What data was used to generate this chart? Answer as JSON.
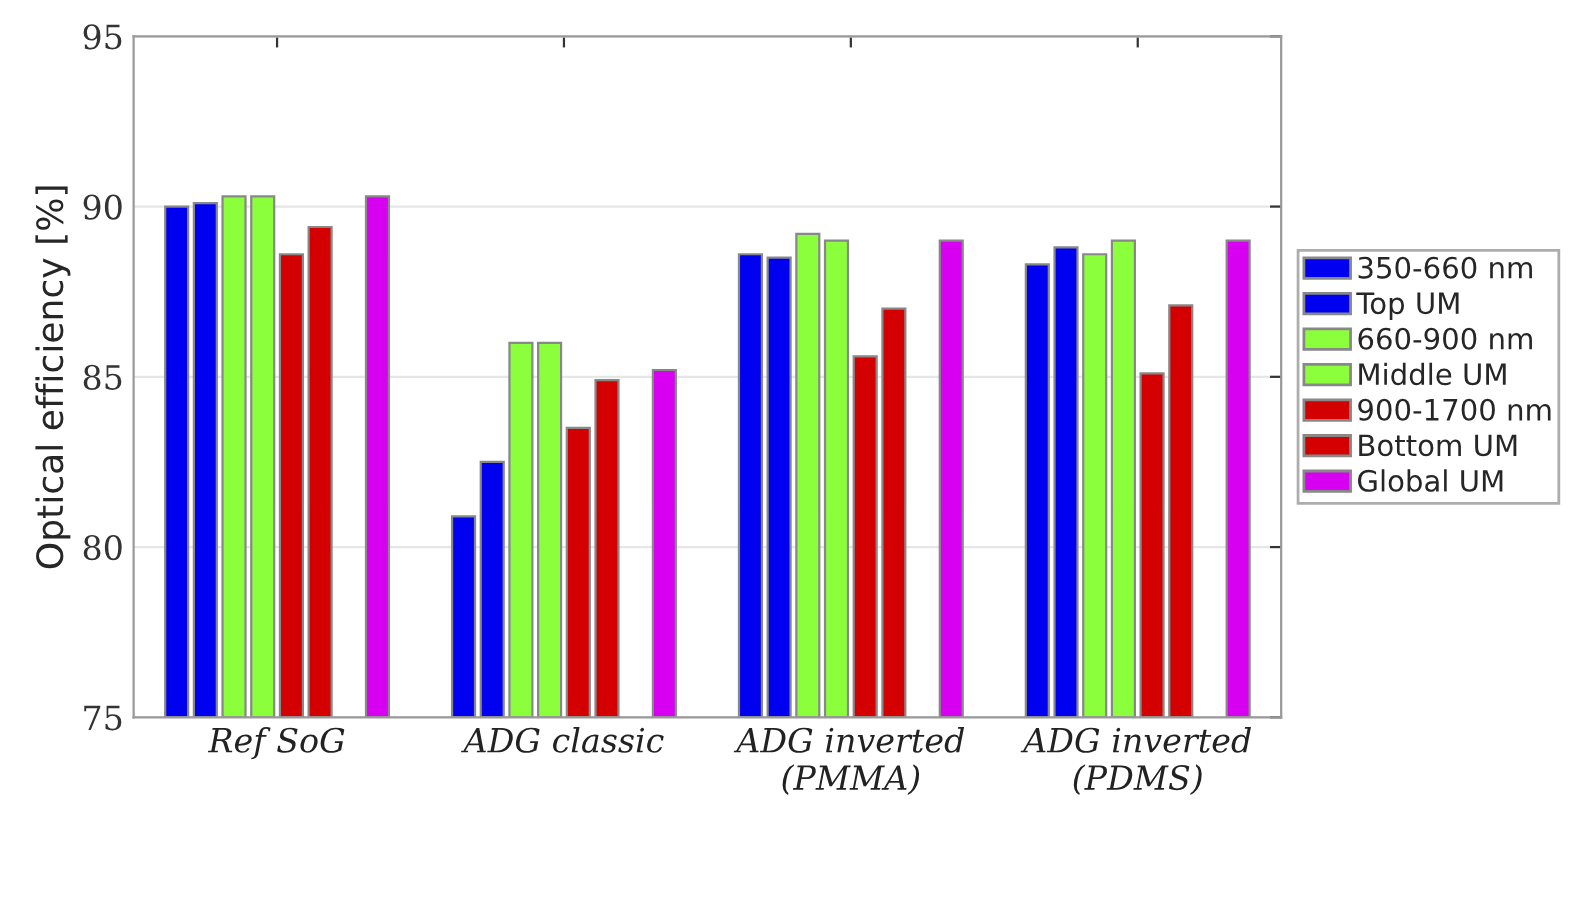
{
  "chart_data": {
    "type": "bar",
    "ylabel": "Optical efficiency [%]",
    "categories": [
      "Ref SoG",
      "ADG classic",
      "ADG inverted\n(PMMA)",
      "ADG inverted\n(PDMS)"
    ],
    "series": [
      {
        "name": "350-660 nm",
        "color": "#0000f0",
        "values": [
          90.0,
          80.9,
          88.6,
          88.3
        ]
      },
      {
        "name": "Top UM",
        "color": "#0000f0",
        "values": [
          90.1,
          82.5,
          88.5,
          88.8
        ]
      },
      {
        "name": "660-900 nm",
        "color": "#8cff3c",
        "values": [
          90.3,
          86.0,
          89.2,
          88.6
        ]
      },
      {
        "name": "Middle UM",
        "color": "#8cff3c",
        "values": [
          90.3,
          86.0,
          89.0,
          89.0
        ]
      },
      {
        "name": "900-1700 nm",
        "color": "#d40000",
        "values": [
          88.6,
          83.5,
          85.6,
          85.1
        ]
      },
      {
        "name": "Bottom UM",
        "color": "#d40000",
        "values": [
          89.4,
          84.9,
          87.0,
          87.1
        ]
      },
      {
        "values": [
          null,
          null,
          null,
          null
        ]
      },
      {
        "name": "Global UM",
        "color": "#d800f0",
        "values": [
          90.3,
          85.2,
          89.0,
          89.0
        ]
      }
    ],
    "ylim": [
      75,
      95
    ],
    "yticks": [
      75,
      80,
      85,
      90,
      95
    ],
    "grid": "y",
    "legend": "right"
  }
}
